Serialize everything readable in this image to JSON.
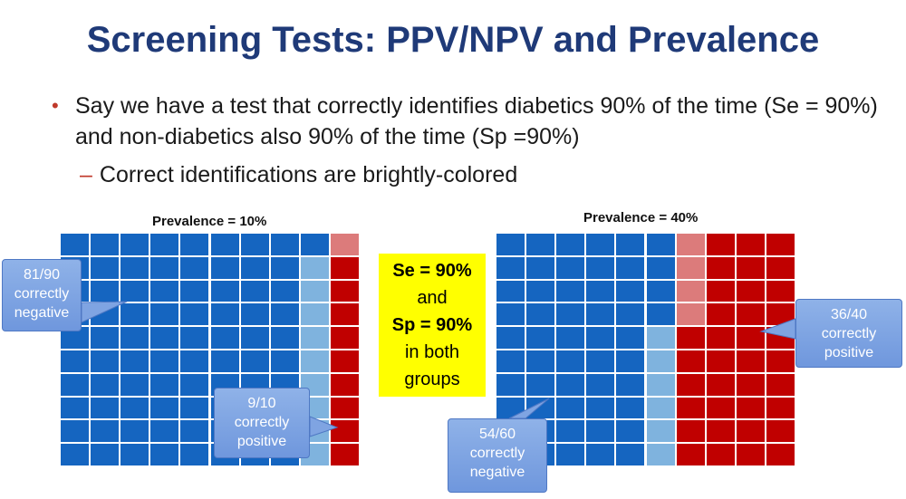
{
  "title": "Screening Tests: PPV/NPV and Prevalence",
  "bullets": [
    {
      "mark": "•",
      "text": "Say we have a test that correctly identifies diabetics 90% of the time (Se = 90%) and non-diabetics also 90% of the time (Sp =90%)"
    },
    {
      "mark": "–",
      "text": "Correct identifications are brightly-colored"
    }
  ],
  "colors": {
    "bright_blue": "#1565c0",
    "light_blue": "#7fb3de",
    "bright_red": "#c00000",
    "light_red": "#dc7b7b",
    "title_blue": "#1f3a78"
  },
  "grids": [
    {
      "title": "Prevalence = 10%",
      "cols": 10,
      "rows": 10,
      "correctly_negative": 81,
      "falsely_positive": 9,
      "falsely_negative": 1,
      "correctly_positive": 9
    },
    {
      "title": "Prevalence = 40%",
      "cols": 10,
      "rows": 10,
      "correctly_negative": 54,
      "falsely_positive": 6,
      "falsely_negative": 4,
      "correctly_positive": 36
    }
  ],
  "callouts": {
    "left_negative": [
      "81/90",
      "correctly",
      "negative"
    ],
    "left_positive": [
      "9/10",
      "correctly",
      "positive"
    ],
    "right_positive": [
      "36/40",
      "correctly",
      "positive"
    ],
    "right_negative": [
      "54/60",
      "correctly",
      "negative"
    ]
  },
  "summary_box": {
    "line1": "Se = 90%",
    "line2": "and",
    "line3": "Sp = 90%",
    "line4": "in both",
    "line5": "groups"
  }
}
